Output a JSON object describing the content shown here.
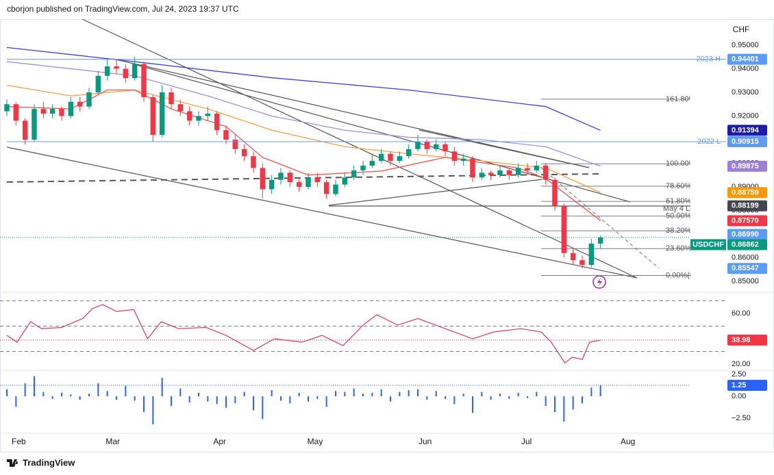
{
  "header": {
    "text": "cborjon published on TradingView.com, Jul 24, 2023 19:37 UTC"
  },
  "footer": {
    "brand": "TradingView"
  },
  "currency": "CHF",
  "chart_data": [
    {
      "type": "candlestick",
      "symbol": "USDCHF",
      "up_color": "#089981",
      "down_color": "#f23645",
      "xlim": [
        0,
        75
      ],
      "ylim": [
        0.846,
        0.9604
      ],
      "xticks": [
        {
          "value": 1.3,
          "label": "Feb"
        },
        {
          "value": 11.6,
          "label": "Mar"
        },
        {
          "value": 23.3,
          "label": "Apr"
        },
        {
          "value": 33.75,
          "label": "May"
        },
        {
          "value": 45.8,
          "label": "Jun"
        },
        {
          "value": 56.9,
          "label": "Jul"
        },
        {
          "value": 68,
          "label": "Aug"
        }
      ],
      "yticks": [
        {
          "value": 0.95,
          "label": "0.95000"
        },
        {
          "value": 0.94,
          "label": "0.94000"
        },
        {
          "value": 0.93,
          "label": "0.93000"
        },
        {
          "value": 0.92,
          "label": "0.92000"
        },
        {
          "value": 0.91,
          "label": "0.91000"
        },
        {
          "value": 0.9,
          "label": "0.90000"
        },
        {
          "value": 0.89,
          "label": "0.89000"
        },
        {
          "value": 0.88,
          "label": "0.88000"
        },
        {
          "value": 0.87,
          "label": "0.87000"
        },
        {
          "value": 0.86,
          "label": "0.86000"
        },
        {
          "value": 0.85,
          "label": "0.85000"
        }
      ],
      "candles": [
        [
          0.922,
          0.927,
          0.92,
          0.925
        ],
        [
          0.925,
          0.926,
          0.916,
          0.918
        ],
        [
          0.918,
          0.919,
          0.908,
          0.91
        ],
        [
          0.91,
          0.925,
          0.909,
          0.923
        ],
        [
          0.923,
          0.926,
          0.919,
          0.921
        ],
        [
          0.921,
          0.925,
          0.919,
          0.923
        ],
        [
          0.923,
          0.924,
          0.918,
          0.92
        ],
        [
          0.92,
          0.928,
          0.919,
          0.926
        ],
        [
          0.926,
          0.928,
          0.922,
          0.924
        ],
        [
          0.924,
          0.932,
          0.923,
          0.93
        ],
        [
          0.93,
          0.939,
          0.929,
          0.937
        ],
        [
          0.937,
          0.944,
          0.935,
          0.941
        ],
        [
          0.941,
          0.944,
          0.938,
          0.94
        ],
        [
          0.94,
          0.942,
          0.934,
          0.936
        ],
        [
          0.936,
          0.945,
          0.935,
          0.942
        ],
        [
          0.942,
          0.943,
          0.926,
          0.928
        ],
        [
          0.928,
          0.929,
          0.909,
          0.912
        ],
        [
          0.912,
          0.933,
          0.911,
          0.93
        ],
        [
          0.93,
          0.932,
          0.923,
          0.925
        ],
        [
          0.925,
          0.927,
          0.92,
          0.922
        ],
        [
          0.922,
          0.924,
          0.916,
          0.918
        ],
        [
          0.918,
          0.922,
          0.916,
          0.92
        ],
        [
          0.92,
          0.924,
          0.918,
          0.921
        ],
        [
          0.921,
          0.922,
          0.912,
          0.914
        ],
        [
          0.914,
          0.916,
          0.908,
          0.91
        ],
        [
          0.91,
          0.912,
          0.904,
          0.906
        ],
        [
          0.906,
          0.908,
          0.901,
          0.903
        ],
        [
          0.903,
          0.905,
          0.896,
          0.898
        ],
        [
          0.898,
          0.9,
          0.885,
          0.889
        ],
        [
          0.889,
          0.895,
          0.887,
          0.893
        ],
        [
          0.893,
          0.898,
          0.891,
          0.896
        ],
        [
          0.896,
          0.897,
          0.89,
          0.892
        ],
        [
          0.892,
          0.894,
          0.888,
          0.89
        ],
        [
          0.89,
          0.896,
          0.889,
          0.894
        ],
        [
          0.894,
          0.896,
          0.89,
          0.892
        ],
        [
          0.892,
          0.893,
          0.885,
          0.887
        ],
        [
          0.887,
          0.893,
          0.886,
          0.891
        ],
        [
          0.891,
          0.896,
          0.89,
          0.894
        ],
        [
          0.894,
          0.899,
          0.893,
          0.897
        ],
        [
          0.897,
          0.901,
          0.895,
          0.899
        ],
        [
          0.899,
          0.904,
          0.898,
          0.901
        ],
        [
          0.901,
          0.906,
          0.9,
          0.904
        ],
        [
          0.904,
          0.905,
          0.899,
          0.901
        ],
        [
          0.901,
          0.905,
          0.9,
          0.903
        ],
        [
          0.903,
          0.908,
          0.902,
          0.906
        ],
        [
          0.906,
          0.912,
          0.905,
          0.909
        ],
        [
          0.909,
          0.91,
          0.904,
          0.906
        ],
        [
          0.906,
          0.91,
          0.905,
          0.908
        ],
        [
          0.908,
          0.909,
          0.903,
          0.905
        ],
        [
          0.905,
          0.907,
          0.899,
          0.901
        ],
        [
          0.901,
          0.904,
          0.899,
          0.902
        ],
        [
          0.902,
          0.903,
          0.892,
          0.894
        ],
        [
          0.894,
          0.898,
          0.893,
          0.896
        ],
        [
          0.896,
          0.897,
          0.893,
          0.895
        ],
        [
          0.895,
          0.899,
          0.894,
          0.897
        ],
        [
          0.897,
          0.898,
          0.893,
          0.895
        ],
        [
          0.895,
          0.9,
          0.894,
          0.898
        ],
        [
          0.898,
          0.9,
          0.895,
          0.897
        ],
        [
          0.897,
          0.901,
          0.896,
          0.899
        ],
        [
          0.899,
          0.9,
          0.891,
          0.893
        ],
        [
          0.893,
          0.894,
          0.88,
          0.882
        ],
        [
          0.882,
          0.883,
          0.86,
          0.862
        ],
        [
          0.862,
          0.864,
          0.857,
          0.859
        ],
        [
          0.859,
          0.861,
          0.8555,
          0.857
        ],
        [
          0.857,
          0.868,
          0.856,
          0.866
        ],
        [
          0.866,
          0.8695,
          0.864,
          0.86862
        ]
      ],
      "ma": [
        {
          "color": "#3d3de0",
          "x": [
            0,
            14,
            29,
            44,
            59,
            65
          ],
          "values": [
            0.949,
            0.943,
            0.9362,
            0.931,
            0.924,
            0.91394
          ]
        },
        {
          "color": "#a58fd6",
          "x": [
            0,
            7,
            14,
            22,
            29,
            37,
            44,
            52,
            59,
            65
          ],
          "values": [
            0.943,
            0.94,
            0.937,
            0.9285,
            0.92,
            0.914,
            0.911,
            0.91,
            0.907,
            0.89875
          ]
        },
        {
          "color": "#ff9f40",
          "x": [
            0,
            7,
            14,
            22,
            29,
            37,
            44,
            52,
            59,
            65
          ],
          "values": [
            0.933,
            0.9285,
            0.931,
            0.923,
            0.914,
            0.907,
            0.904,
            0.901,
            0.898,
            0.88759
          ]
        },
        {
          "color": "#f0554f",
          "x": [
            0,
            7,
            11,
            14,
            18,
            24,
            28,
            33,
            41,
            48,
            56,
            59,
            65
          ],
          "values": [
            0.924,
            0.923,
            0.931,
            0.931,
            0.923,
            0.9155,
            0.9025,
            0.895,
            0.8967,
            0.9025,
            0.898,
            0.8935,
            0.8757
          ]
        }
      ],
      "levels": [
        {
          "label": "2023 H",
          "value": 0.94401
        },
        {
          "label": "2022 L",
          "value": 0.90915
        }
      ],
      "level_color": "#5b9cf6",
      "fibs": [
        {
          "label": "161.80%(0.92712)",
          "value": 0.92712
        },
        {
          "label": "100.00%(0.89977)",
          "value": 0.89977
        },
        {
          "label": "78.60%(0.89030)",
          "value": 0.8903
        },
        {
          "label": "61.80%(0.88386)",
          "value": 0.88386
        },
        {
          "label": "50.00%(0.87764)",
          "value": 0.87764
        },
        {
          "label": "38.20%(0.87142)",
          "value": 0.87142
        },
        {
          "label": "23.60%(0.86390)",
          "value": 0.8639
        },
        {
          "label": "0.00%(0.85251)",
          "value": 0.85251
        }
      ],
      "annotations": [
        "May 4 Low"
      ],
      "tags": [
        {
          "value": 0.94401,
          "label": "0.94401",
          "color": "#5b9cf6"
        },
        {
          "value": 0.91394,
          "label": "0.91394",
          "color": "#1c1ca8"
        },
        {
          "value": 0.90915,
          "label": "0.90915",
          "color": "#5b9cf6"
        },
        {
          "value": 0.89875,
          "label": "0.89875",
          "color": "#9c7fd6"
        },
        {
          "value": 0.88759,
          "label": "0.88759",
          "color": "#ff9800"
        },
        {
          "value": 0.88199,
          "label": "0.88199",
          "color": "#434651"
        },
        {
          "value": 0.8757,
          "label": "0.87570",
          "color": "#f23645"
        },
        {
          "value": 0.8699,
          "label": "0.86990",
          "color": "#5b9cf6"
        },
        {
          "value": 0.86862,
          "label": "0.86862",
          "color": "#089981",
          "name": "USDCHF"
        },
        {
          "value": 0.85547,
          "label": "0.85547",
          "color": "#5b9cf6"
        }
      ]
    },
    {
      "type": "line",
      "color": "#e0375c",
      "xlim": [
        0,
        75
      ],
      "ylim": [
        15.7,
        76.2
      ],
      "yticks": [
        {
          "value": 60,
          "label": "60.00"
        },
        {
          "value": 20,
          "label": "20.00"
        }
      ],
      "levels_dashed": [
        70,
        50,
        30
      ],
      "x": [
        0,
        1.1,
        2.6,
        3.8,
        6,
        8.3,
        9.4,
        10.5,
        12,
        13.9,
        15.4,
        16.9,
        18.8,
        21.8,
        24,
        27,
        29.3,
        32.3,
        34.5,
        36.8,
        39,
        40.5,
        42.8,
        45,
        48,
        51,
        53.3,
        56.3,
        58.5,
        59.6,
        61.1,
        61.9,
        63,
        63.8,
        65
      ],
      "values": [
        42.7,
        37.3,
        53.5,
        48,
        49,
        56,
        64,
        67,
        61.6,
        63,
        40,
        53.5,
        48,
        49,
        42.7,
        30.8,
        40,
        37.3,
        42.7,
        34.6,
        50.8,
        59,
        50.8,
        56,
        48,
        40,
        45.4,
        48,
        45.4,
        37.3,
        21,
        25.4,
        23.8,
        37.3,
        38.98
      ],
      "tags": [
        {
          "value": 38.98,
          "label": "38.98",
          "color": "#f23645"
        }
      ]
    },
    {
      "type": "bar",
      "color": "#2962ff",
      "xlim": [
        0,
        75
      ],
      "ylim": [
        -4.14,
        2.97
      ],
      "yticks": [
        {
          "value": 2.5,
          "label": "2.50"
        },
        {
          "value": 0,
          "label": "0.00"
        },
        {
          "value": -2.5,
          "label": "−2.50"
        }
      ],
      "values": [
        0.8,
        -1.2,
        1.5,
        2.3,
        0.5,
        -0.3,
        0.4,
        0.2,
        -0.4,
        0.3,
        1.5,
        0.6,
        -0.4,
        1.2,
        -0.5,
        -1.8,
        -3.2,
        2.1,
        -1.1,
        0.9,
        -0.7,
        0.4,
        -0.6,
        -0.9,
        -1.3,
        -0.8,
        0.5,
        -1.6,
        -2.6,
        0.7,
        -0.5,
        -0.8,
        0.4,
        -0.6,
        -0.3,
        -1.2,
        0.6,
        0.5,
        0.9,
        0.3,
        0.4,
        0.8,
        -0.6,
        0.5,
        0.7,
        0.8,
        -0.4,
        0.6,
        -0.3,
        -0.9,
        0.3,
        -1.9,
        0.5,
        -0.4,
        0.3,
        -0.3,
        0.4,
        -0.2,
        0.5,
        -1.1,
        -1.8,
        -2.9,
        -1.5,
        -0.8,
        1.0,
        1.25
      ],
      "tags": [
        {
          "value": 1.25,
          "label": "1.25",
          "color": "#2962ff"
        }
      ]
    }
  ]
}
